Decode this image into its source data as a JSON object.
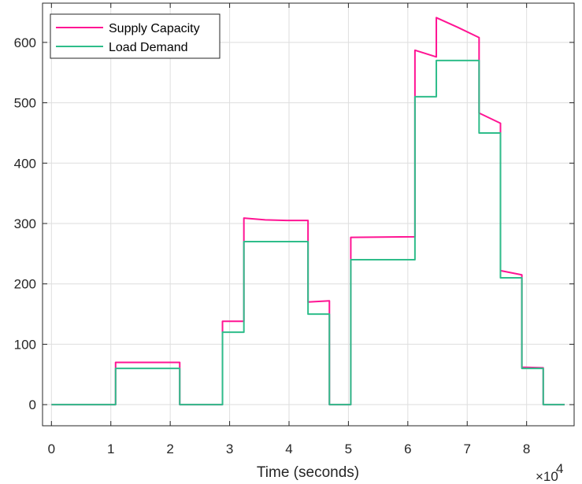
{
  "chart_data": {
    "type": "line",
    "xlabel": "Time (seconds)",
    "ylabel": "",
    "x_exponent_label": "×10",
    "x_exponent_power": "4",
    "xlim": [
      -1500,
      88000
    ],
    "ylim": [
      -35,
      665
    ],
    "x_ticks": [
      0,
      10000,
      20000,
      30000,
      40000,
      50000,
      60000,
      70000,
      80000
    ],
    "x_tick_labels": [
      "0",
      "1",
      "2",
      "3",
      "4",
      "5",
      "6",
      "7",
      "8"
    ],
    "y_ticks": [
      0,
      100,
      200,
      300,
      400,
      500,
      600
    ],
    "y_tick_labels": [
      "0",
      "100",
      "200",
      "300",
      "400",
      "500",
      "600"
    ],
    "grid": true,
    "legend_position": "top-left",
    "series": [
      {
        "name": "Supply Capacity",
        "color": "#ff1493",
        "x": [
          0,
          10800,
          10800,
          21600,
          21600,
          28800,
          28800,
          32400,
          32400,
          36000,
          39600,
          43200,
          43200,
          46800,
          46800,
          50400,
          50400,
          61200,
          61200,
          64800,
          64800,
          68400,
          72000,
          72000,
          75600,
          75600,
          79200,
          79200,
          82800,
          82800,
          86400
        ],
        "y": [
          0,
          0,
          70,
          70,
          0,
          0,
          138,
          138,
          309,
          306,
          305,
          305,
          170,
          172,
          0,
          0,
          277,
          278,
          587,
          576,
          641,
          625,
          608,
          483,
          466,
          222,
          215,
          62,
          61,
          0,
          0
        ]
      },
      {
        "name": "Load Demand",
        "color": "#2ebd8a",
        "x": [
          0,
          10800,
          10800,
          21600,
          21600,
          28800,
          28800,
          32400,
          32400,
          43200,
          43200,
          46800,
          46800,
          50400,
          50400,
          61200,
          61200,
          64800,
          64800,
          72000,
          72000,
          75600,
          75600,
          79200,
          79200,
          82800,
          82800,
          86400
        ],
        "y": [
          0,
          0,
          60,
          60,
          0,
          0,
          120,
          120,
          270,
          270,
          150,
          150,
          0,
          0,
          240,
          240,
          510,
          510,
          570,
          570,
          450,
          450,
          210,
          210,
          60,
          60,
          0,
          0
        ]
      }
    ]
  }
}
